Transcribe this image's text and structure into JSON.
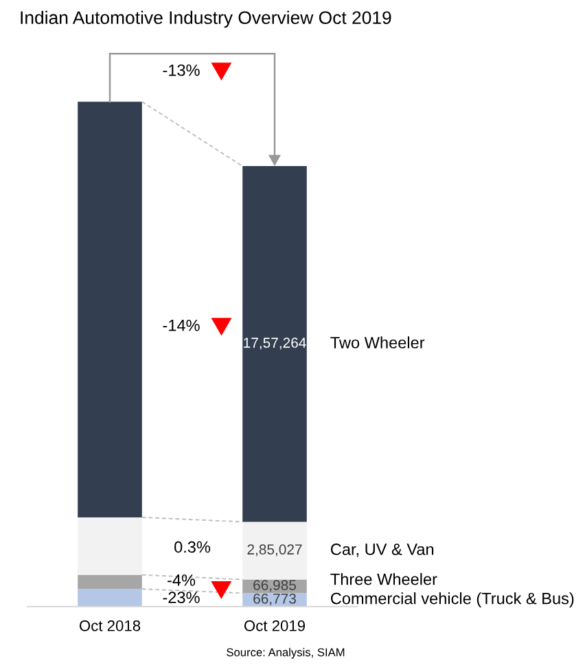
{
  "chart_data": {
    "type": "bar",
    "stacked": true,
    "title": "Indian Automotive Industry Overview Oct 2019",
    "categories": [
      "Oct 2018",
      "Oct 2019"
    ],
    "series": [
      {
        "name": "Commercial vehicle (Truck & Bus)",
        "color": "#b4c7e7",
        "values": [
          87000,
          66773
        ],
        "value_labels": [
          null,
          "66,773"
        ]
      },
      {
        "name": "Three Wheeler",
        "color": "#a6a6a6",
        "values": [
          70000,
          66985
        ],
        "value_labels": [
          null,
          "66,985"
        ]
      },
      {
        "name": "Car, UV & Van",
        "color": "#f2f2f2",
        "values": [
          284000,
          285027
        ],
        "value_labels": [
          null,
          "2,85,027"
        ]
      },
      {
        "name": "Two Wheeler",
        "color": "#333f50",
        "values": [
          2053000,
          1757264
        ],
        "value_labels": [
          null,
          "17,57,264"
        ]
      }
    ],
    "annotations": [
      "-13%",
      "-14%",
      "0.3%",
      "-4%",
      "-23%",
      "Source: Analysis, SIAM"
    ],
    "tick_labels": "x"
  }
}
